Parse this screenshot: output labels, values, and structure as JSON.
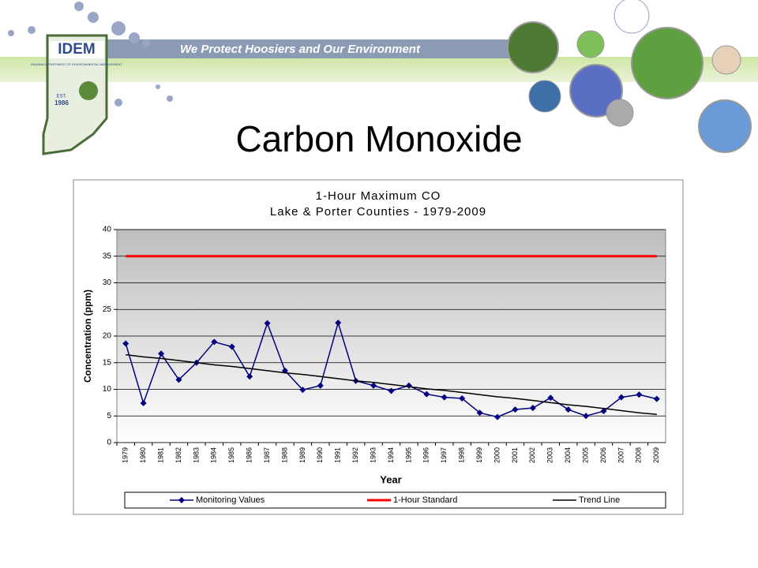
{
  "banner": {
    "logo": "IDEM",
    "agency": "INDIANA DEPARTMENT OF ENVIRONMENTAL MANAGEMENT",
    "est": "EST.",
    "est_year": "1986",
    "motto": "We Protect Hoosiers and Our Environment"
  },
  "slide_title": "Carbon Monoxide",
  "chart_data": {
    "type": "line",
    "title": [
      "1-Hour Maximum CO",
      "Lake & Porter Counties - 1979-2009"
    ],
    "x_label": "Year",
    "y_label": "Concentration (ppm)",
    "categories": [
      "1979",
      "1980",
      "1981",
      "1982",
      "1983",
      "1984",
      "1985",
      "1986",
      "1987",
      "1988",
      "1989",
      "1990",
      "1991",
      "1992",
      "1993",
      "1994",
      "1995",
      "1996",
      "1997",
      "1998",
      "1999",
      "2000",
      "2001",
      "2002",
      "2003",
      "2004",
      "2005",
      "2006",
      "2007",
      "2008",
      "2009"
    ],
    "series": [
      {
        "name": "Monitoring Values",
        "color": "#000080",
        "marker": "diamond",
        "values": [
          18.6,
          7.4,
          16.7,
          11.8,
          15.0,
          18.9,
          18.0,
          12.4,
          22.4,
          13.5,
          9.9,
          10.7,
          22.5,
          11.6,
          10.7,
          9.7,
          10.7,
          9.1,
          8.5,
          8.3,
          5.6,
          4.8,
          6.2,
          6.5,
          8.4,
          6.2,
          5.0,
          5.9,
          8.5,
          9.0,
          8.2
        ]
      },
      {
        "name": "1-Hour Standard",
        "color": "#ff0000",
        "values": [
          35,
          35,
          35,
          35,
          35,
          35,
          35,
          35,
          35,
          35,
          35,
          35,
          35,
          35,
          35,
          35,
          35,
          35,
          35,
          35,
          35,
          35,
          35,
          35,
          35,
          35,
          35,
          35,
          35,
          35,
          35
        ]
      },
      {
        "name": "Trend Line",
        "color": "#000000",
        "values": [
          16.5,
          16.1,
          15.8,
          15.4,
          15.0,
          14.6,
          14.3,
          13.9,
          13.5,
          13.1,
          12.8,
          12.4,
          12.0,
          11.6,
          11.3,
          10.9,
          10.5,
          10.1,
          9.8,
          9.4,
          9.0,
          8.6,
          8.3,
          7.9,
          7.5,
          7.1,
          6.8,
          6.4,
          6.0,
          5.6,
          5.3
        ]
      }
    ],
    "ylim": [
      0,
      40
    ],
    "yticks": [
      0,
      5,
      10,
      15,
      20,
      25,
      30,
      35,
      40
    ],
    "grid": true,
    "legend": "bottom"
  }
}
